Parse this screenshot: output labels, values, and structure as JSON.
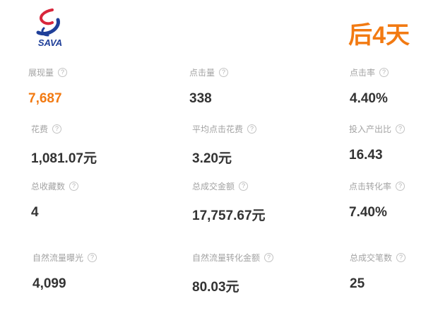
{
  "brand": {
    "logo_text": "SAVA"
  },
  "badge": {
    "text": "后4天",
    "color": "#f27a12"
  },
  "colors": {
    "highlight": "#f27a12",
    "label": "#a3a3a3",
    "value": "#333333"
  },
  "metrics": [
    {
      "label": "展现量",
      "value": "7,687",
      "highlight": true
    },
    {
      "label": "点击量",
      "value": "338"
    },
    {
      "label": "点击率",
      "value": "4.40%"
    },
    {
      "label": "花费",
      "value": "1,081.07元"
    },
    {
      "label": "平均点击花费",
      "value": "3.20元"
    },
    {
      "label": "投入产出比",
      "value": "16.43"
    },
    {
      "label": "总收藏数",
      "value": "4"
    },
    {
      "label": "总成交金额",
      "value": "17,757.67元"
    },
    {
      "label": "点击转化率",
      "value": "7.40%"
    },
    {
      "label": "自然流量曝光",
      "value": "4,099"
    },
    {
      "label": "自然流量转化金额",
      "value": "80.03元"
    },
    {
      "label": "总成交笔数",
      "value": "25"
    }
  ],
  "help_icon": "question-circle-icon"
}
